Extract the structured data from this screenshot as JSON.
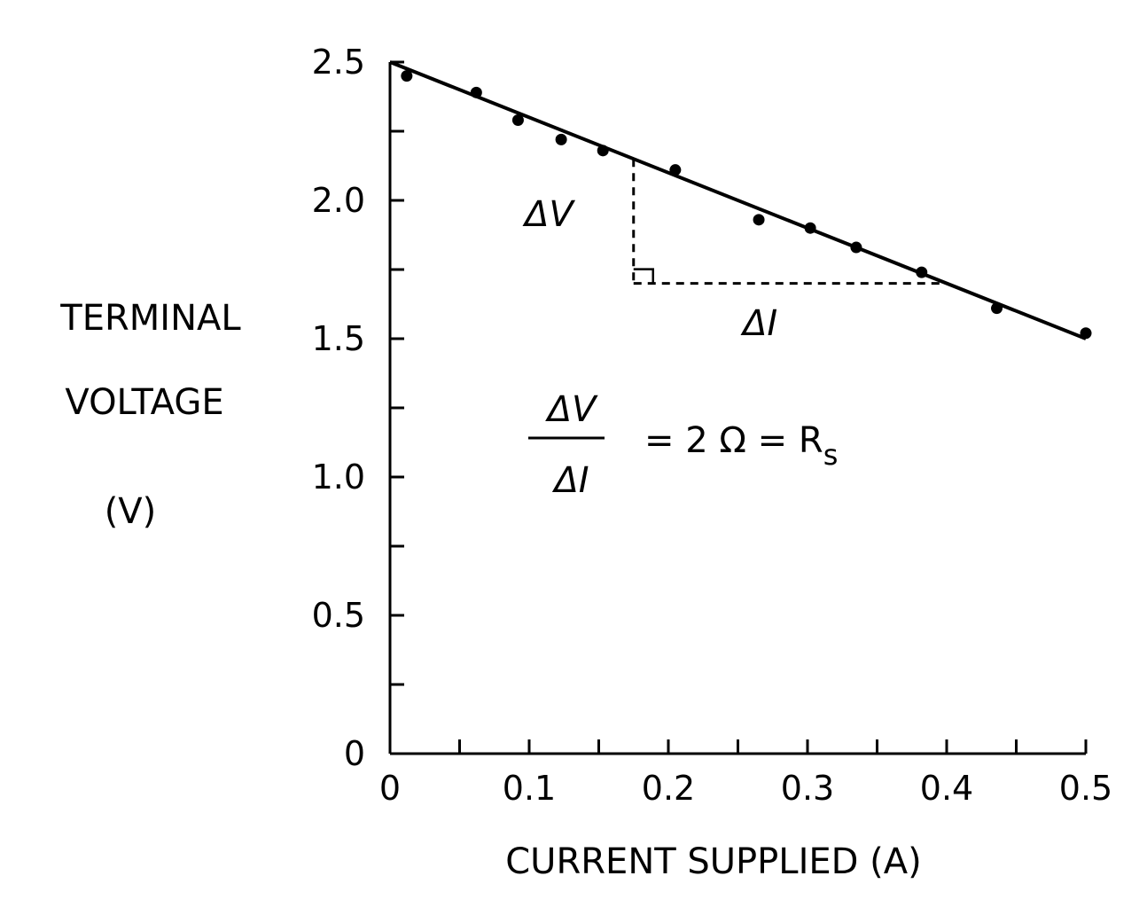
{
  "chart_data": {
    "type": "scatter",
    "title": "",
    "xlabel": "CURRENT SUPPLIED (A)",
    "ylabel_lines": [
      "TERMINAL",
      "VOLTAGE",
      "(V)"
    ],
    "xlim": [
      0,
      0.5
    ],
    "ylim": [
      0,
      2.5
    ],
    "x_ticks": [
      0,
      0.1,
      0.2,
      0.3,
      0.4,
      0.5
    ],
    "x_tick_labels": [
      "0",
      "0.1",
      "0.2",
      "0.3",
      "0.4",
      "0.5"
    ],
    "x_minor_step": 0.05,
    "y_ticks": [
      0,
      0.5,
      1.0,
      1.5,
      2.0,
      2.5
    ],
    "y_tick_labels": [
      "0",
      "0.5",
      "1.0",
      "1.5",
      "2.0",
      "2.5"
    ],
    "y_minor_step": 0.25,
    "grid": false,
    "points": [
      {
        "x": 0.012,
        "y": 2.45
      },
      {
        "x": 0.062,
        "y": 2.39
      },
      {
        "x": 0.092,
        "y": 2.29
      },
      {
        "x": 0.123,
        "y": 2.22
      },
      {
        "x": 0.153,
        "y": 2.18
      },
      {
        "x": 0.205,
        "y": 2.11
      },
      {
        "x": 0.265,
        "y": 1.93
      },
      {
        "x": 0.302,
        "y": 1.9
      },
      {
        "x": 0.335,
        "y": 1.83
      },
      {
        "x": 0.382,
        "y": 1.74
      },
      {
        "x": 0.436,
        "y": 1.61
      },
      {
        "x": 0.5,
        "y": 1.52
      }
    ],
    "fit_line": {
      "x": [
        0,
        0.5
      ],
      "y": [
        2.5,
        1.5
      ]
    },
    "slope_triangle": {
      "x1": 0.175,
      "x2": 0.4,
      "y_top": 2.15,
      "y_bottom": 1.7
    },
    "annotations": {
      "delta_v": "ΔV",
      "delta_i": "ΔI",
      "ratio_numerator": "ΔV",
      "ratio_denominator": "ΔI",
      "equation": "= 2 Ω = R",
      "equation_subscript": "s"
    }
  }
}
